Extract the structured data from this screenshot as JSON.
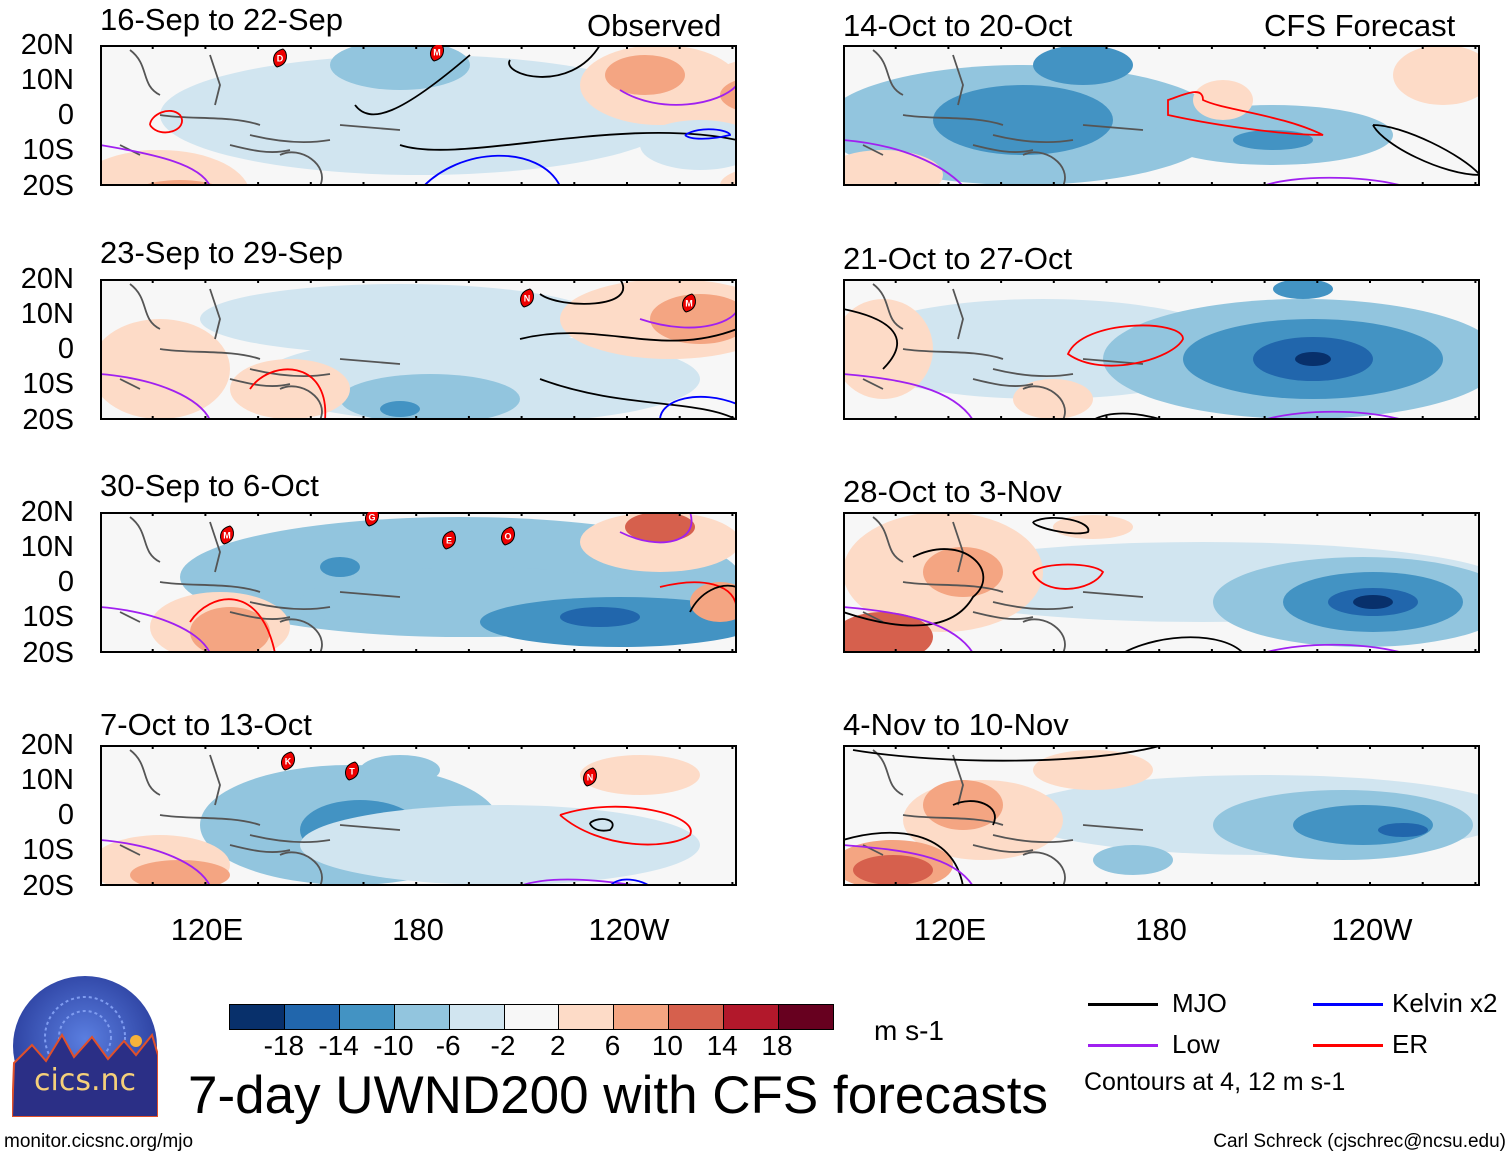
{
  "observed_label": "Observed",
  "forecast_label": "CFS Forecast",
  "panels": [
    {
      "title": "16-Sep to 22-Sep",
      "storms": [
        {
          "letter": "D"
        },
        {
          "letter": "M"
        }
      ]
    },
    {
      "title": "23-Sep to 29-Sep",
      "storms": [
        {
          "letter": "N"
        },
        {
          "letter": "M"
        }
      ]
    },
    {
      "title": "30-Sep to 6-Oct",
      "storms": [
        {
          "letter": "G"
        },
        {
          "letter": "M"
        },
        {
          "letter": "E"
        },
        {
          "letter": "O"
        }
      ]
    },
    {
      "title": "7-Oct to 13-Oct",
      "storms": [
        {
          "letter": "K"
        },
        {
          "letter": "T"
        },
        {
          "letter": "N"
        }
      ]
    },
    {
      "title": "14-Oct to 20-Oct",
      "storms": []
    },
    {
      "title": "21-Oct to 27-Oct",
      "storms": []
    },
    {
      "title": "28-Oct to 3-Nov",
      "storms": []
    },
    {
      "title": "4-Nov to 10-Nov",
      "storms": []
    }
  ],
  "lat_labels": [
    "20N",
    "10N",
    "0",
    "10S",
    "20S"
  ],
  "lon_labels": [
    "120E",
    "180",
    "120W"
  ],
  "colorbar": {
    "colors": [
      "#08306b",
      "#2166ac",
      "#4393c3",
      "#92c5de",
      "#d1e5f0",
      "#f7f7f7",
      "#fddbc7",
      "#f4a582",
      "#d6604d",
      "#b2182b",
      "#67001f"
    ],
    "labels": [
      "-18",
      "-14",
      "-10",
      "-6",
      "-2",
      "2",
      "6",
      "10",
      "14",
      "18"
    ],
    "units": "m s-1"
  },
  "title": "7-day UWND200 with CFS forecasts",
  "legend": {
    "items": [
      {
        "label": "MJO",
        "color": "#000000"
      },
      {
        "label": "Kelvin x2",
        "color": "#0000ff"
      },
      {
        "label": "Low",
        "color": "#a020f0"
      },
      {
        "label": "ER",
        "color": "#ff0000"
      }
    ],
    "note": "Contours at 4, 12 m s-1"
  },
  "logo_text": "cics.nc",
  "logo_ring_text": "Cooperative Institute for Climate and Satellites",
  "footer_left": "monitor.cicsnc.org/mjo",
  "footer_right": "Carl Schreck (cjschrec@ncsu.edu)"
}
